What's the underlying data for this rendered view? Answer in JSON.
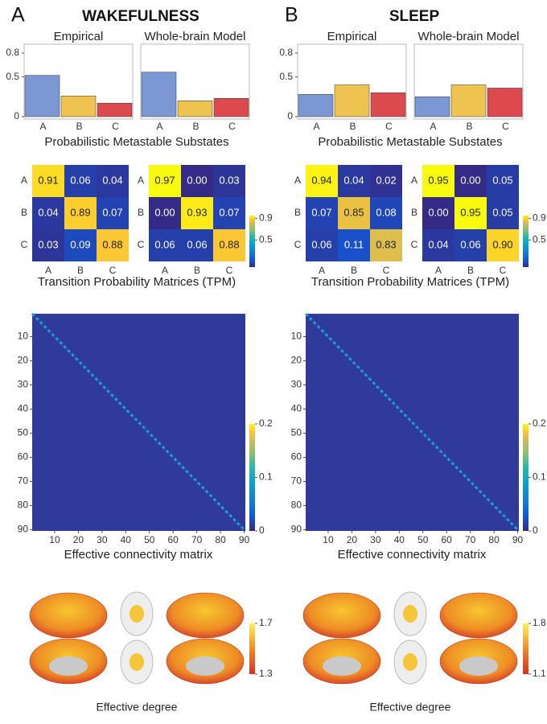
{
  "panels": [
    {
      "letter": "A",
      "title": "WAKEFULNESS",
      "bar_charts": [
        {
          "type": "bar",
          "title": "Empirical",
          "categories": [
            "A",
            "B",
            "C"
          ],
          "values": [
            0.52,
            0.26,
            0.17
          ],
          "colors": [
            "#7b98d4",
            "#efc34f",
            "#dc4a50"
          ],
          "ylim": [
            0,
            0.8
          ],
          "yticks": [
            0,
            0.5,
            0.8
          ]
        },
        {
          "type": "bar",
          "title": "Whole-brain Model",
          "categories": [
            "A",
            "B",
            "C"
          ],
          "values": [
            0.56,
            0.2,
            0.23
          ],
          "colors": [
            "#7b98d4",
            "#efc34f",
            "#dc4a50"
          ],
          "ylim": [
            0,
            0.8
          ]
        }
      ],
      "bar_xlabel": "Probabilistic Metastable Substates",
      "tpm": [
        {
          "type": "heatmap",
          "rows": [
            "A",
            "B",
            "C"
          ],
          "cols": [
            "A",
            "B",
            "C"
          ],
          "values": [
            [
              0.91,
              0.06,
              0.04
            ],
            [
              0.04,
              0.89,
              0.07
            ],
            [
              0.03,
              0.09,
              0.88
            ]
          ],
          "value_labels": [
            [
              "0.91",
              "0.06",
              "0.04"
            ],
            [
              "0.04",
              "0.89",
              "0.07"
            ],
            [
              "0.03",
              "0.09",
              "0.88"
            ]
          ]
        },
        {
          "type": "heatmap",
          "rows": [
            "A",
            "B",
            "C"
          ],
          "cols": [
            "A",
            "B",
            "C"
          ],
          "values": [
            [
              0.97,
              0,
              0.03
            ],
            [
              0,
              0.93,
              0.07
            ],
            [
              0.06,
              0.06,
              0.88
            ]
          ],
          "value_labels": [
            [
              "0.97",
              "0.00",
              "0.03"
            ],
            [
              "0.00",
              "0.93",
              "0.07"
            ],
            [
              "0.06",
              "0.06",
              "0.88"
            ]
          ]
        }
      ],
      "tpm_clim": [
        0,
        0.95
      ],
      "tpm_cticks": [
        0.5,
        0.9
      ],
      "tpm_xlabel": "Transition Probability Matrices (TPM)",
      "ec": {
        "type": "heatmap",
        "lim": [
          0.5,
          90.5
        ],
        "ticks": [
          10,
          20,
          30,
          40,
          50,
          60,
          70,
          80,
          90
        ],
        "clim": [
          0,
          0.2
        ],
        "cticks": [
          0,
          0.1,
          0.2
        ],
        "xlabel": "Effective connectivity matrix"
      },
      "brain": {
        "clim": [
          1.3,
          1.7
        ],
        "cticks": [
          1.3,
          1.7
        ],
        "xlabel": "Effective degree"
      }
    },
    {
      "letter": "B",
      "title": "SLEEP",
      "bar_charts": [
        {
          "type": "bar",
          "title": "Empirical",
          "categories": [
            "A",
            "B",
            "C"
          ],
          "values": [
            0.28,
            0.4,
            0.3
          ],
          "colors": [
            "#7b98d4",
            "#efc34f",
            "#dc4a50"
          ],
          "ylim": [
            0,
            0.8
          ],
          "yticks": [
            0,
            0.5,
            0.8
          ]
        },
        {
          "type": "bar",
          "title": "Whole-brain Model",
          "categories": [
            "A",
            "B",
            "C"
          ],
          "values": [
            0.25,
            0.4,
            0.36
          ],
          "colors": [
            "#7b98d4",
            "#efc34f",
            "#dc4a50"
          ],
          "ylim": [
            0,
            0.8
          ]
        }
      ],
      "bar_xlabel": "Probabilistic Metastable Substates",
      "tpm": [
        {
          "type": "heatmap",
          "rows": [
            "A",
            "B",
            "C"
          ],
          "cols": [
            "A",
            "B",
            "C"
          ],
          "values": [
            [
              0.94,
              0.04,
              0.02
            ],
            [
              0.07,
              0.85,
              0.08
            ],
            [
              0.06,
              0.11,
              0.83
            ]
          ],
          "value_labels": [
            [
              "0.94",
              "0.04",
              "0.02"
            ],
            [
              "0.07",
              "0.85",
              "0.08"
            ],
            [
              "0.06",
              "0.11",
              "0.83"
            ]
          ]
        },
        {
          "type": "heatmap",
          "rows": [
            "A",
            "B",
            "C"
          ],
          "cols": [
            "A",
            "B",
            "C"
          ],
          "values": [
            [
              0.95,
              0,
              0.05
            ],
            [
              0,
              0.95,
              0.05
            ],
            [
              0.04,
              0.06,
              0.9
            ]
          ],
          "value_labels": [
            [
              "0.95",
              "0.00",
              "0.05"
            ],
            [
              "0.00",
              "0.95",
              "0.05"
            ],
            [
              "0.04",
              "0.06",
              "0.90"
            ]
          ]
        }
      ],
      "tpm_clim": [
        0,
        0.95
      ],
      "tpm_cticks": [
        0.5,
        0.9
      ],
      "tpm_xlabel": "Transition Probability Matrices (TPM)",
      "ec": {
        "type": "heatmap",
        "lim": [
          0.5,
          90.5
        ],
        "ticks": [
          10,
          20,
          30,
          40,
          50,
          60,
          70,
          80,
          90
        ],
        "clim": [
          0,
          0.2
        ],
        "cticks": [
          0,
          0.1,
          0.2
        ],
        "xlabel": "Effective connectivity matrix"
      },
      "brain": {
        "clim": [
          1.1,
          1.8
        ],
        "cticks": [
          1.1,
          1.8
        ],
        "xlabel": "Effective degree"
      }
    }
  ]
}
